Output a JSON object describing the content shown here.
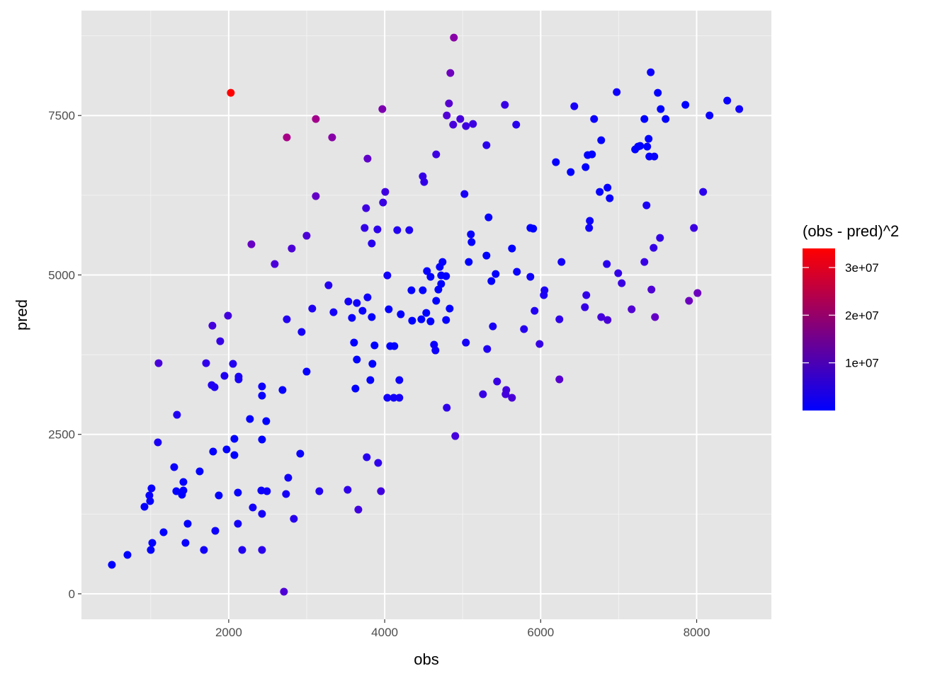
{
  "chart_data": {
    "type": "scatter",
    "title": "",
    "xlabel": "obs",
    "ylabel": "pred",
    "xlim": [
      112,
      8958
    ],
    "ylim": [
      -400,
      9145
    ],
    "x_ticks": [
      2000,
      4000,
      6000,
      8000
    ],
    "y_ticks": [
      0,
      2500,
      5000,
      7500
    ],
    "x_tick_labels": [
      "2000",
      "4000",
      "6000",
      "8000"
    ],
    "y_tick_labels": [
      "0",
      "2500",
      "5000",
      "7500"
    ],
    "grid": true,
    "background": "#E5E5E5",
    "color": {
      "variable": "(obs - pred)^2",
      "legend_title": "(obs - pred)^2",
      "low": "#0000FF",
      "high": "#FF0000",
      "limits": [
        0,
        34000000
      ],
      "ticks": [
        10000000,
        20000000,
        30000000
      ],
      "tick_labels": [
        "1e+07",
        "2e+07",
        "3e+07"
      ],
      "legend_placement": "right"
    },
    "columns": [
      "obs",
      "pred"
    ],
    "points": [
      [
        502,
        455
      ],
      [
        702,
        610
      ],
      [
        1001,
        688
      ],
      [
        1020,
        799
      ],
      [
        1165,
        965
      ],
      [
        920,
        1365
      ],
      [
        992,
        1454
      ],
      [
        983,
        1542
      ],
      [
        1010,
        1653
      ],
      [
        1301,
        1986
      ],
      [
        1328,
        1609
      ],
      [
        1401,
        1553
      ],
      [
        1419,
        1620
      ],
      [
        1419,
        1753
      ],
      [
        1474,
        1099
      ],
      [
        1446,
        799
      ],
      [
        1092,
        2375
      ],
      [
        1337,
        2807
      ],
      [
        1101,
        3617
      ],
      [
        1682,
        688
      ],
      [
        1628,
        1920
      ],
      [
        1800,
        2230
      ],
      [
        1828,
        988
      ],
      [
        1873,
        1542
      ],
      [
        1973,
        2264
      ],
      [
        2073,
        2430
      ],
      [
        2073,
        2175
      ],
      [
        2118,
        1099
      ],
      [
        2118,
        1587
      ],
      [
        2173,
        688
      ],
      [
        2309,
        1354
      ],
      [
        2272,
        2741
      ],
      [
        2427,
        1254
      ],
      [
        2427,
        688
      ],
      [
        2418,
        1620
      ],
      [
        2490,
        1609
      ],
      [
        2427,
        2419
      ],
      [
        2427,
        3107
      ],
      [
        2427,
        3251
      ],
      [
        2481,
        2707
      ],
      [
        2690,
        3196
      ],
      [
        2735,
        1565
      ],
      [
        2763,
        1820
      ],
      [
        2835,
        1176
      ],
      [
        2708,
        33
      ],
      [
        2917,
        2197
      ],
      [
        2999,
        3484
      ],
      [
        3162,
        1609
      ],
      [
        2935,
        4106
      ],
      [
        3071,
        4472
      ],
      [
        3280,
        4838
      ],
      [
        3344,
        4416
      ],
      [
        2745,
        4305
      ],
      [
        1710,
        3617
      ],
      [
        1782,
        3273
      ],
      [
        1819,
        3240
      ],
      [
        1946,
        3418
      ],
      [
        2055,
        3606
      ],
      [
        2127,
        3406
      ],
      [
        2127,
        3362
      ],
      [
        1891,
        3961
      ],
      [
        1791,
        4205
      ],
      [
        1991,
        4361
      ],
      [
        2291,
        5481
      ],
      [
        2590,
        5171
      ],
      [
        2808,
        5415
      ],
      [
        2999,
        5615
      ],
      [
        3117,
        6236
      ],
      [
        3117,
        7445
      ],
      [
        3326,
        7157
      ],
      [
        2745,
        7157
      ],
      [
        2027,
        7856
      ],
      [
        3525,
        1631
      ],
      [
        3662,
        1320
      ],
      [
        3770,
        2142
      ],
      [
        3916,
        2053
      ],
      [
        3952,
        1609
      ],
      [
        3534,
        4583
      ],
      [
        3580,
        4327
      ],
      [
        3607,
        3939
      ],
      [
        3625,
        3218
      ],
      [
        3643,
        3673
      ],
      [
        3643,
        4560
      ],
      [
        3716,
        4438
      ],
      [
        3780,
        4649
      ],
      [
        3834,
        4339
      ],
      [
        3870,
        3895
      ],
      [
        3843,
        3606
      ],
      [
        3816,
        3351
      ],
      [
        3743,
        5737
      ],
      [
        3761,
        6047
      ],
      [
        3780,
        6824
      ],
      [
        3834,
        5493
      ],
      [
        3907,
        5714
      ],
      [
        3979,
        6136
      ],
      [
        4007,
        6303
      ],
      [
        3970,
        7601
      ],
      [
        4034,
        4993
      ],
      [
        4052,
        4461
      ],
      [
        4034,
        3074
      ],
      [
        4116,
        3074
      ],
      [
        4188,
        3074
      ],
      [
        4070,
        3884
      ],
      [
        4124,
        3884
      ],
      [
        4188,
        3351
      ],
      [
        4206,
        4383
      ],
      [
        4161,
        5703
      ],
      [
        4315,
        5703
      ],
      [
        4343,
        4760
      ],
      [
        4352,
        4283
      ],
      [
        4488,
        4760
      ],
      [
        4470,
        4305
      ],
      [
        4533,
        4405
      ],
      [
        4542,
        5060
      ],
      [
        4588,
        4971
      ],
      [
        4588,
        4272
      ],
      [
        4633,
        3906
      ],
      [
        4651,
        3817
      ],
      [
        4660,
        4594
      ],
      [
        4688,
        4771
      ],
      [
        4706,
        5126
      ],
      [
        4724,
        4860
      ],
      [
        4724,
        4993
      ],
      [
        4742,
        5204
      ],
      [
        4787,
        4982
      ],
      [
        4787,
        4294
      ],
      [
        4833,
        4472
      ],
      [
        4796,
        2918
      ],
      [
        4905,
        2474
      ],
      [
        4887,
        8722
      ],
      [
        4842,
        8167
      ],
      [
        4824,
        7690
      ],
      [
        4796,
        7501
      ],
      [
        4878,
        7357
      ],
      [
        4969,
        7445
      ],
      [
        5042,
        7334
      ],
      [
        5132,
        7368
      ],
      [
        4660,
        6891
      ],
      [
        4488,
        6547
      ],
      [
        4506,
        6458
      ],
      [
        5023,
        6269
      ],
      [
        5105,
        5637
      ],
      [
        5114,
        5515
      ],
      [
        5078,
        5204
      ],
      [
        5041,
        3939
      ],
      [
        5332,
        5903
      ],
      [
        5305,
        5304
      ],
      [
        5368,
        4904
      ],
      [
        5423,
        5015
      ],
      [
        5387,
        4194
      ],
      [
        5314,
        3839
      ],
      [
        5260,
        3129
      ],
      [
        5441,
        3329
      ],
      [
        5559,
        3196
      ],
      [
        5550,
        3129
      ],
      [
        5632,
        3074
      ],
      [
        5305,
        7035
      ],
      [
        5541,
        7667
      ],
      [
        5686,
        7357
      ],
      [
        5632,
        5415
      ],
      [
        5695,
        5049
      ],
      [
        5786,
        4150
      ],
      [
        5868,
        4971
      ],
      [
        5868,
        5737
      ],
      [
        5904,
        5726
      ],
      [
        5922,
        4438
      ],
      [
        5986,
        3917
      ],
      [
        6040,
        4683
      ],
      [
        6049,
        4760
      ],
      [
        6240,
        3362
      ],
      [
        6240,
        4305
      ],
      [
        6267,
        5204
      ],
      [
        6195,
        6769
      ],
      [
        6385,
        6613
      ],
      [
        6431,
        7645
      ],
      [
        6576,
        6691
      ],
      [
        6603,
        6880
      ],
      [
        6658,
        6891
      ],
      [
        6621,
        5737
      ],
      [
        6630,
        5848
      ],
      [
        6685,
        7445
      ],
      [
        6776,
        7113
      ],
      [
        6757,
        6303
      ],
      [
        6857,
        6369
      ],
      [
        6885,
        6203
      ],
      [
        6567,
        4494
      ],
      [
        6585,
        4683
      ],
      [
        6776,
        4339
      ],
      [
        6848,
        5171
      ],
      [
        6857,
        4294
      ],
      [
        6975,
        7867
      ],
      [
        6994,
        5027
      ],
      [
        7039,
        4871
      ],
      [
        7166,
        4461
      ],
      [
        7211,
        6968
      ],
      [
        7248,
        7013
      ],
      [
        7275,
        7024
      ],
      [
        7330,
        7445
      ],
      [
        7330,
        5204
      ],
      [
        7357,
        6092
      ],
      [
        7366,
        7013
      ],
      [
        7384,
        7135
      ],
      [
        7393,
        6857
      ],
      [
        7457,
        6857
      ],
      [
        7411,
        8178
      ],
      [
        7448,
        5426
      ],
      [
        7420,
        4771
      ],
      [
        7466,
        4339
      ],
      [
        7502,
        7856
      ],
      [
        7539,
        7601
      ],
      [
        7602,
        7445
      ],
      [
        7530,
        5581
      ],
      [
        7856,
        7667
      ],
      [
        7902,
        4594
      ],
      [
        7965,
        5737
      ],
      [
        8011,
        4716
      ],
      [
        8083,
        6303
      ],
      [
        8165,
        7501
      ],
      [
        8392,
        7734
      ],
      [
        8546,
        7601
      ]
    ]
  }
}
